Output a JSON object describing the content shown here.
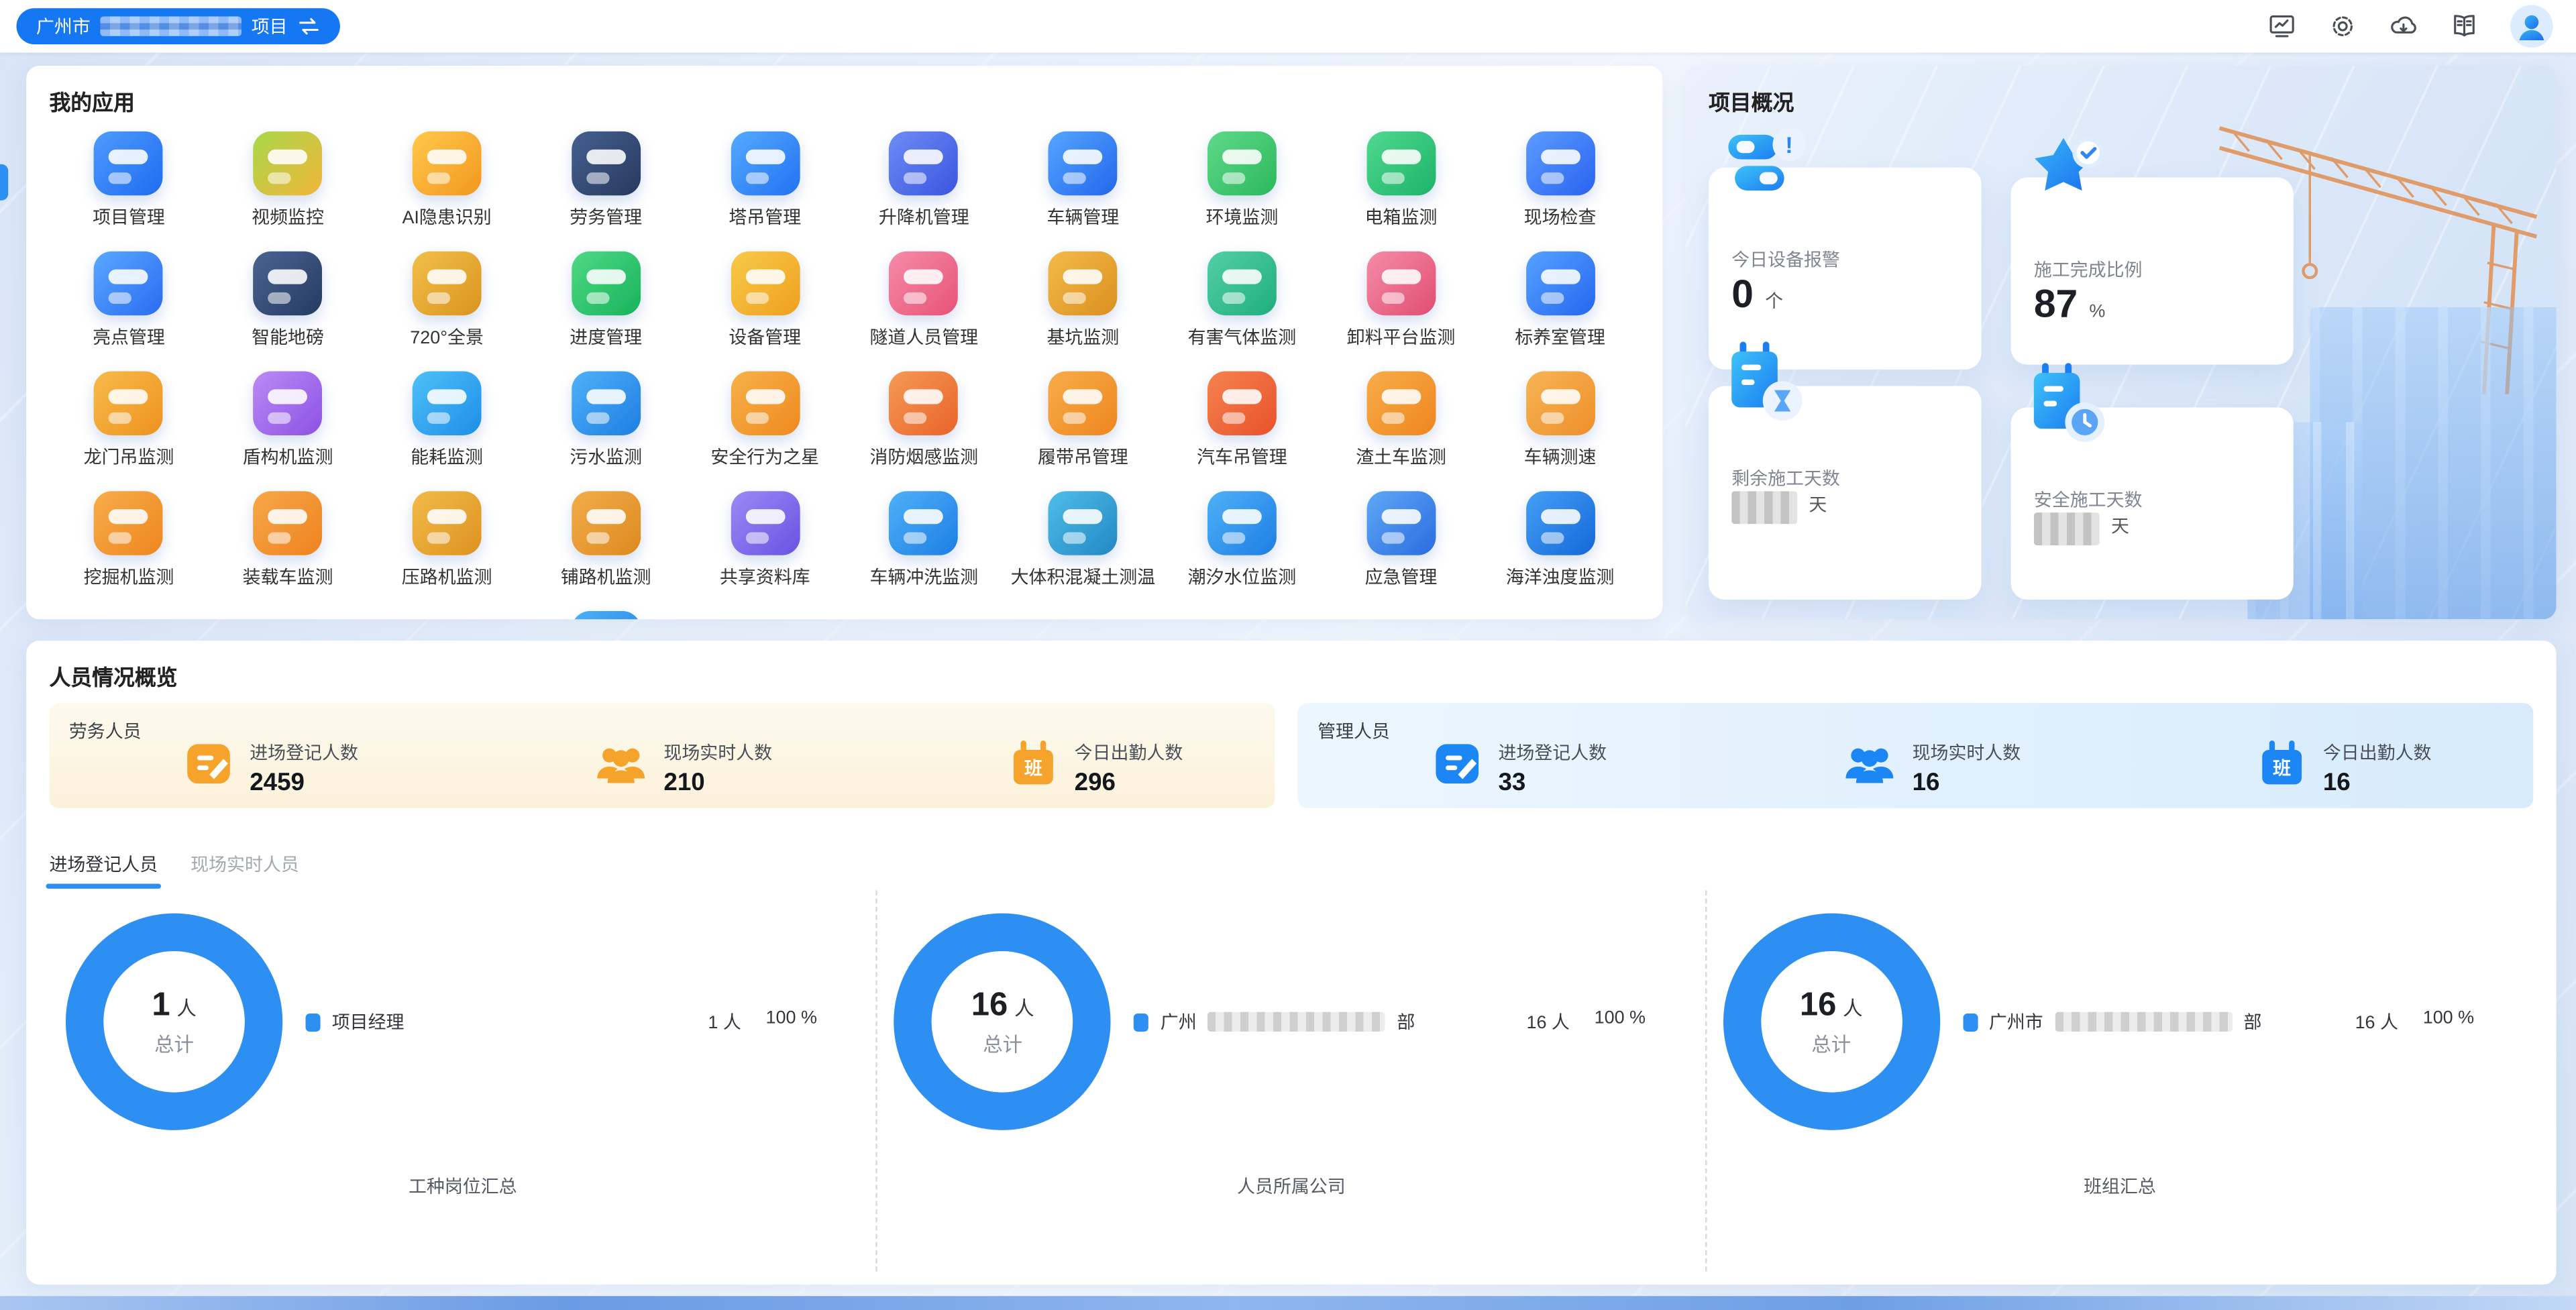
{
  "theme": {
    "accent": "#1677f2",
    "donut": "#2e8ff2",
    "labor": "#f6a32c",
    "management": "#1d86f5"
  },
  "top_bar": {
    "project": {
      "prefix": "广州市",
      "suffix": "项目",
      "redacted_middle": true
    },
    "icons": [
      "monitor",
      "settings",
      "cloud-download",
      "handbook",
      "avatar"
    ]
  },
  "apps_panel": {
    "title": "我的应用",
    "apps": [
      {
        "label": "项目管理",
        "c1": "#4e9bff",
        "c2": "#1f6cf0"
      },
      {
        "label": "视频监控",
        "c1": "#a8d84a",
        "c2": "#f2b53a"
      },
      {
        "label": "AI隐患识别",
        "c1": "#ffc94a",
        "c2": "#f2971f"
      },
      {
        "label": "劳务管理",
        "c1": "#46608f",
        "c2": "#27395f"
      },
      {
        "label": "塔吊管理",
        "c1": "#55aaff",
        "c2": "#2272f2"
      },
      {
        "label": "升降机管理",
        "c1": "#6e8cf5",
        "c2": "#3b55e0"
      },
      {
        "label": "车辆管理",
        "c1": "#55a5ff",
        "c2": "#2268ec"
      },
      {
        "label": "环境监测",
        "c1": "#5fd98a",
        "c2": "#2bb85c"
      },
      {
        "label": "电箱监测",
        "c1": "#4fd98f",
        "c2": "#1db368"
      },
      {
        "label": "现场检查",
        "c1": "#5b9cff",
        "c2": "#2b63f0"
      },
      {
        "label": "亮点管理",
        "c1": "#5aa8ff",
        "c2": "#2a6cf0"
      },
      {
        "label": "智能地磅",
        "c1": "#4a6492",
        "c2": "#263a61"
      },
      {
        "label": "720°全景",
        "c1": "#f2c04a",
        "c2": "#d9941f"
      },
      {
        "label": "进度管理",
        "c1": "#4fd985",
        "c2": "#17b35a"
      },
      {
        "label": "设备管理",
        "c1": "#f7ca4a",
        "c2": "#ef9f1f"
      },
      {
        "label": "隧道人员管理",
        "c1": "#f58ca8",
        "c2": "#e85277"
      },
      {
        "label": "基坑监测",
        "c1": "#f2bb4a",
        "c2": "#db8f1f"
      },
      {
        "label": "有害气体监测",
        "c1": "#53cfa5",
        "c2": "#1fae7d"
      },
      {
        "label": "卸料平台监测",
        "c1": "#f58ca8",
        "c2": "#e04e72"
      },
      {
        "label": "标养室管理",
        "c1": "#56a2ff",
        "c2": "#2667ef"
      },
      {
        "label": "龙门吊监测",
        "c1": "#f7bb4a",
        "c2": "#ee921f"
      },
      {
        "label": "盾构机监测",
        "c1": "#bb8af5",
        "c2": "#8d52e3"
      },
      {
        "label": "能耗监测",
        "c1": "#4fc0f7",
        "c2": "#1d8ee8"
      },
      {
        "label": "污水监测",
        "c1": "#4fb1f7",
        "c2": "#1d7ee4"
      },
      {
        "label": "安全行为之星",
        "c1": "#f7b14a",
        "c2": "#ee8a1f"
      },
      {
        "label": "消防烟感监测",
        "c1": "#f59a55",
        "c2": "#e8642a"
      },
      {
        "label": "履带吊管理",
        "c1": "#f7ad4a",
        "c2": "#ee861f"
      },
      {
        "label": "汽车吊管理",
        "c1": "#f5824f",
        "c2": "#e8522a"
      },
      {
        "label": "渣土车监测",
        "c1": "#f7ad4a",
        "c2": "#ee861f"
      },
      {
        "label": "车辆测速",
        "c1": "#f7b455",
        "c2": "#ee8f2a"
      },
      {
        "label": "挖掘机监测",
        "c1": "#f7ad4a",
        "c2": "#ee861f"
      },
      {
        "label": "装载车监测",
        "c1": "#f7a84a",
        "c2": "#ee821f"
      },
      {
        "label": "压路机监测",
        "c1": "#f2bb4a",
        "c2": "#dd921f"
      },
      {
        "label": "铺路机监测",
        "c1": "#f2ad4a",
        "c2": "#dd8a1f"
      },
      {
        "label": "共享资料库",
        "c1": "#9a8af5",
        "c2": "#6b52e3"
      },
      {
        "label": "车辆冲洗监测",
        "c1": "#4fb1f7",
        "c2": "#1d7ee4"
      },
      {
        "label": "大体积混凝土测温",
        "c1": "#4fbde8",
        "c2": "#2288c4"
      },
      {
        "label": "潮汐水位监测",
        "c1": "#4fb1f7",
        "c2": "#1d7ee4"
      },
      {
        "label": "应急管理",
        "c1": "#5fa8f5",
        "c2": "#2a6ce0"
      },
      {
        "label": "海洋浊度监测",
        "c1": "#45a0f5",
        "c2": "#1468d8"
      }
    ],
    "partial_icon": {
      "c1": "#4fb1f7",
      "c2": "#1d7ee4",
      "column": 4
    }
  },
  "overview_panel": {
    "title": "项目概况",
    "cards": [
      {
        "label": "今日设备报警",
        "value": "0",
        "unit": "个",
        "redacted": false
      },
      {
        "label": "施工完成比例",
        "value": "87",
        "unit": "%",
        "redacted": false
      },
      {
        "label": "剩余施工天数",
        "value": "",
        "unit": "天",
        "redacted": true
      },
      {
        "label": "安全施工天数",
        "value": "",
        "unit": "天",
        "redacted": true
      }
    ]
  },
  "personnel_panel": {
    "title": "人员情况概览",
    "groups": [
      {
        "name": "劳务人员",
        "theme": "labor",
        "stats": [
          {
            "icon": "register",
            "label": "进场登记人数",
            "value": "2459"
          },
          {
            "icon": "people",
            "label": "现场实时人数",
            "value": "210"
          },
          {
            "icon": "calendar",
            "icon_char": "班",
            "label": "今日出勤人数",
            "value": "296"
          }
        ]
      },
      {
        "name": "管理人员",
        "theme": "management",
        "stats": [
          {
            "icon": "register",
            "label": "进场登记人数",
            "value": "33"
          },
          {
            "icon": "people",
            "label": "现场实时人数",
            "value": "16"
          },
          {
            "icon": "calendar",
            "icon_char": "班",
            "label": "今日出勤人数",
            "value": "16"
          }
        ]
      }
    ],
    "tabs": [
      {
        "label": "进场登记人员",
        "active": true
      },
      {
        "label": "现场实时人员",
        "active": false
      }
    ]
  },
  "chart_data": [
    {
      "type": "pie",
      "title": "工种岗位汇总",
      "center_value": "1",
      "center_unit": "人",
      "center_label": "总计",
      "segments": [
        {
          "label": "项目经理",
          "redacted": false,
          "value": 1,
          "unit": "人",
          "percent": 100,
          "color": "#2e8ff2"
        }
      ]
    },
    {
      "type": "pie",
      "title": "人员所属公司",
      "center_value": "16",
      "center_unit": "人",
      "center_label": "总计",
      "segments": [
        {
          "label_prefix": "广州",
          "label_suffix": "部",
          "redacted": true,
          "value": 16,
          "unit": "人",
          "percent": 100,
          "color": "#2e8ff2"
        }
      ]
    },
    {
      "type": "pie",
      "title": "班组汇总",
      "center_value": "16",
      "center_unit": "人",
      "center_label": "总计",
      "segments": [
        {
          "label_prefix": "广州市",
          "label_suffix": "部",
          "redacted": true,
          "value": 16,
          "unit": "人",
          "percent": 100,
          "color": "#2e8ff2"
        }
      ]
    }
  ]
}
